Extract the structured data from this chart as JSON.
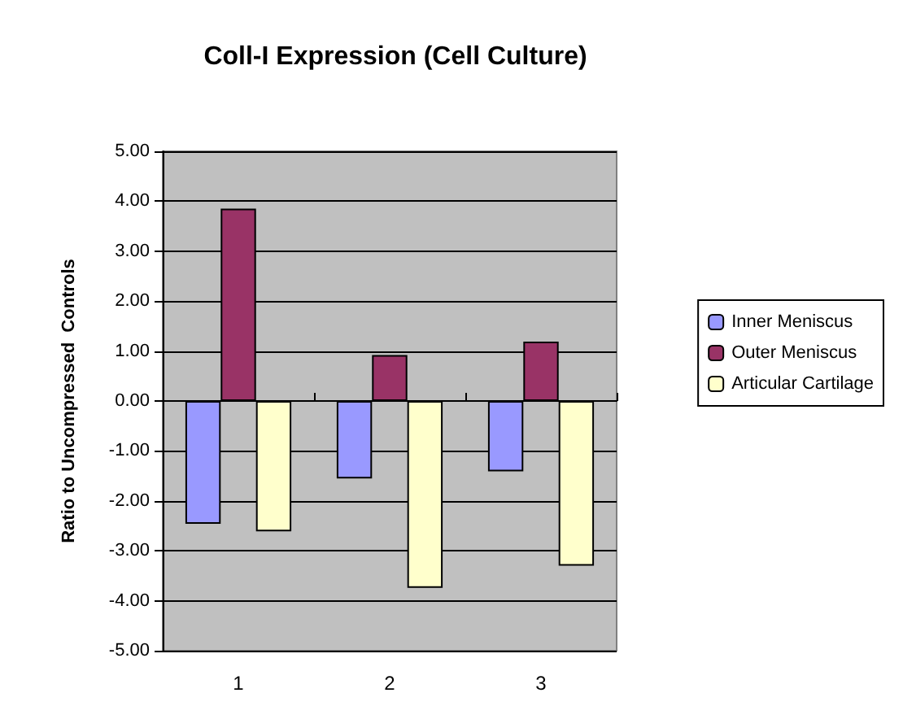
{
  "chart_data": {
    "type": "bar",
    "title": "Coll-I Expression (Cell Culture)",
    "ylabel": "Ratio to Uncompressed  Controls",
    "categories": [
      "1",
      "2",
      "3"
    ],
    "series": [
      {
        "name": "Inner Meniscus",
        "color": "#9999ff",
        "values": [
          -2.46,
          -1.55,
          -1.41
        ]
      },
      {
        "name": "Outer Meniscus",
        "color": "#993366",
        "values": [
          3.85,
          0.92,
          1.19
        ]
      },
      {
        "name": "Articular Cartilage",
        "color": "#ffffcc",
        "values": [
          -2.61,
          -3.74,
          -3.3
        ]
      }
    ],
    "ylim": [
      -5,
      5
    ],
    "yticks": [
      {
        "value": -5,
        "label": "-5.00"
      },
      {
        "value": -4,
        "label": "-4.00"
      },
      {
        "value": -3,
        "label": "-3.00"
      },
      {
        "value": -2,
        "label": "-2.00"
      },
      {
        "value": -1,
        "label": "-1.00"
      },
      {
        "value": 0,
        "label": "0.00"
      },
      {
        "value": 1,
        "label": "1.00"
      },
      {
        "value": 2,
        "label": "2.00"
      },
      {
        "value": 3,
        "label": "3.00"
      },
      {
        "value": 4,
        "label": "4.00"
      },
      {
        "value": 5,
        "label": "5.00"
      }
    ],
    "grid": "y",
    "legend": "right"
  }
}
